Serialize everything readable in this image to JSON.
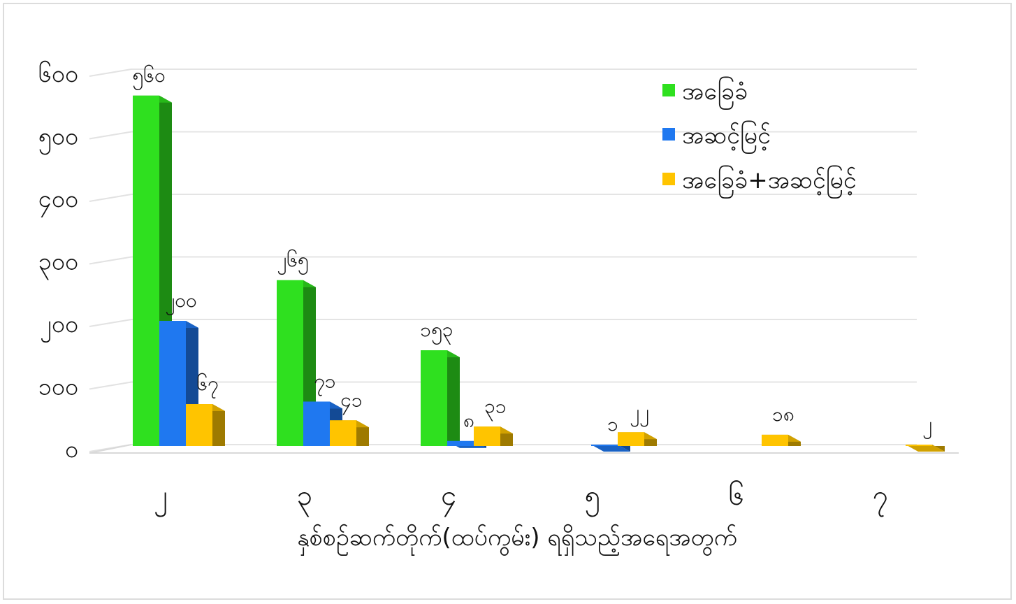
{
  "chart_data": {
    "type": "bar",
    "categories": [
      "၂",
      "၃",
      "၄",
      "၅",
      "၆",
      "၇"
    ],
    "category_values": [
      2,
      3,
      4,
      5,
      6,
      7
    ],
    "series": [
      {
        "name": "အခြေခံ",
        "color": "#2fe01f",
        "values": [
          560,
          265,
          153,
          0,
          0,
          0
        ],
        "labels": [
          "၅၆၀",
          "၂၆၅",
          "၁၅၃",
          "",
          "",
          ""
        ]
      },
      {
        "name": "အဆင့်မြင့်",
        "color": "#1f78f0",
        "values": [
          200,
          71,
          8,
          1,
          0,
          0
        ],
        "labels": [
          "၂၀၀",
          "၇၁",
          "၈",
          "၁",
          "",
          ""
        ]
      },
      {
        "name": "အခြေခံ+အဆင့်မြင့်",
        "color": "#ffc400",
        "values": [
          67,
          41,
          31,
          22,
          18,
          2
        ],
        "labels": [
          "၆၇",
          "၄၁",
          "၃၁",
          "၂၂",
          "၁၈",
          "၂"
        ]
      }
    ],
    "y_ticks": [
      "၀",
      "၁၀၀",
      "၂၀၀",
      "၃၀၀",
      "၄၀၀",
      "၅၀၀",
      "၆၀၀"
    ],
    "ylim": [
      0,
      600
    ],
    "xlabel": "နှစ်စဉ်ဆက်တိုက်(ထပ်ကွမ်း) ရရှိသည့်အရေအတွက်",
    "ylabel": "",
    "title": "",
    "grid": true,
    "legend_position": "top-right",
    "style": "3d-clustered-column"
  }
}
